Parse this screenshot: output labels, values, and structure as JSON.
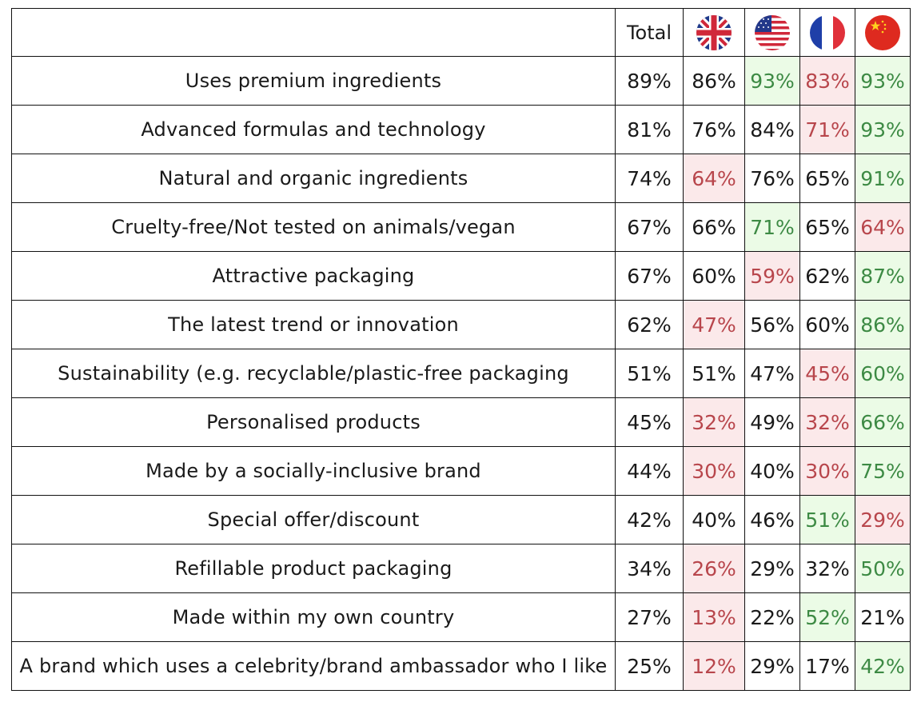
{
  "chart_data": {
    "type": "table",
    "columns": [
      {
        "key": "total",
        "label": "Total"
      },
      {
        "key": "uk",
        "flag": "uk-flag-icon"
      },
      {
        "key": "us",
        "flag": "us-flag-icon"
      },
      {
        "key": "fr",
        "flag": "fr-flag-icon"
      },
      {
        "key": "cn",
        "flag": "cn-flag-icon"
      }
    ],
    "rows": [
      {
        "label": "Uses premium ingredients",
        "values": [
          "89%",
          "86%",
          "93%",
          "83%",
          "93%"
        ],
        "highlight": [
          null,
          null,
          "high",
          "low",
          "high"
        ]
      },
      {
        "label": "Advanced formulas and technology",
        "values": [
          "81%",
          "76%",
          "84%",
          "71%",
          "93%"
        ],
        "highlight": [
          null,
          null,
          null,
          "low",
          "high"
        ]
      },
      {
        "label": "Natural and organic ingredients",
        "values": [
          "74%",
          "64%",
          "76%",
          "65%",
          "91%"
        ],
        "highlight": [
          null,
          "low",
          null,
          null,
          "high"
        ]
      },
      {
        "label": "Cruelty-free/Not tested on animals/vegan",
        "values": [
          "67%",
          "66%",
          "71%",
          "65%",
          "64%"
        ],
        "highlight": [
          null,
          null,
          "high",
          null,
          "low"
        ]
      },
      {
        "label": "Attractive packaging",
        "values": [
          "67%",
          "60%",
          "59%",
          "62%",
          "87%"
        ],
        "highlight": [
          null,
          null,
          "low",
          null,
          "high"
        ]
      },
      {
        "label": "The latest trend or innovation",
        "values": [
          "62%",
          "47%",
          "56%",
          "60%",
          "86%"
        ],
        "highlight": [
          null,
          "low",
          null,
          null,
          "high"
        ]
      },
      {
        "label": "Sustainability (e.g. recyclable/plastic-free packaging",
        "values": [
          "51%",
          "51%",
          "47%",
          "45%",
          "60%"
        ],
        "highlight": [
          null,
          null,
          null,
          "low",
          "high"
        ]
      },
      {
        "label": "Personalised products",
        "values": [
          "45%",
          "32%",
          "49%",
          "32%",
          "66%"
        ],
        "highlight": [
          null,
          "low",
          null,
          "low",
          "high"
        ]
      },
      {
        "label": "Made by a socially-inclusive brand",
        "values": [
          "44%",
          "30%",
          "40%",
          "30%",
          "75%"
        ],
        "highlight": [
          null,
          "low",
          null,
          "low",
          "high"
        ]
      },
      {
        "label": "Special offer/discount",
        "values": [
          "42%",
          "40%",
          "46%",
          "51%",
          "29%"
        ],
        "highlight": [
          null,
          null,
          null,
          "high",
          "low"
        ]
      },
      {
        "label": "Refillable product packaging",
        "values": [
          "34%",
          "26%",
          "29%",
          "32%",
          "50%"
        ],
        "highlight": [
          null,
          "low",
          null,
          null,
          "high"
        ]
      },
      {
        "label": "Made within my own country",
        "values": [
          "27%",
          "13%",
          "22%",
          "52%",
          "21%"
        ],
        "highlight": [
          null,
          "low",
          null,
          "high",
          null
        ]
      },
      {
        "label": "A brand which uses a celebrity/brand ambassador who I like",
        "values": [
          "25%",
          "12%",
          "29%",
          "17%",
          "42%"
        ],
        "highlight": [
          null,
          "low",
          null,
          null,
          "high"
        ]
      }
    ],
    "colors": {
      "high_bg": "#ebfbe6",
      "high_text": "#3d8a44",
      "low_bg": "#fbe9ea",
      "low_text": "#b8464c"
    }
  }
}
